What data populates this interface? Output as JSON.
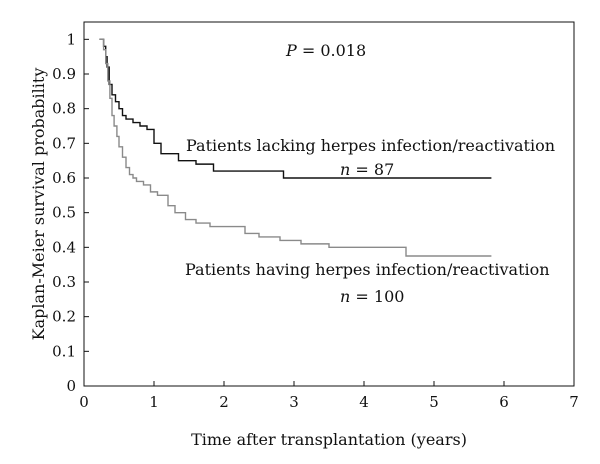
{
  "chart_data": {
    "type": "line",
    "title": "",
    "xlabel": "Time after transplantation (years)",
    "ylabel": "Kaplan-Meier survival probability",
    "xlim": [
      0,
      7
    ],
    "ylim": [
      0,
      1.05
    ],
    "xticks": [
      "0",
      "1",
      "2",
      "3",
      "4",
      "5",
      "6",
      "7"
    ],
    "yticks": [
      "0",
      "0.1",
      "0.2",
      "0.3",
      "0.4",
      "0.5",
      "0.6",
      "0.7",
      "0.8",
      "0.9",
      "1"
    ],
    "grid": false,
    "step": true,
    "series": [
      {
        "name": "Patients lacking herpes infection/reactivation",
        "color": "#111111",
        "x": [
          0.22,
          0.28,
          0.31,
          0.33,
          0.36,
          0.4,
          0.45,
          0.5,
          0.55,
          0.6,
          0.7,
          0.8,
          0.9,
          1.0,
          1.1,
          1.35,
          1.6,
          1.85,
          2.1,
          2.5,
          2.85,
          3.3,
          3.8,
          4.3,
          4.8,
          5.3,
          5.82
        ],
        "y": [
          1.0,
          0.98,
          0.95,
          0.92,
          0.87,
          0.84,
          0.82,
          0.8,
          0.78,
          0.77,
          0.76,
          0.75,
          0.74,
          0.7,
          0.67,
          0.65,
          0.64,
          0.62,
          0.62,
          0.62,
          0.6,
          0.6,
          0.6,
          0.6,
          0.6,
          0.6,
          0.6
        ]
      },
      {
        "name": "Patients having herpes infection/reactivation",
        "color": "#8a8a8a",
        "x": [
          0.22,
          0.28,
          0.31,
          0.34,
          0.37,
          0.4,
          0.43,
          0.47,
          0.5,
          0.55,
          0.6,
          0.65,
          0.7,
          0.75,
          0.85,
          0.95,
          1.05,
          1.2,
          1.3,
          1.45,
          1.6,
          1.8,
          2.0,
          2.3,
          2.5,
          2.8,
          3.1,
          3.5,
          4.0,
          4.6,
          5.0,
          5.82
        ],
        "y": [
          1.0,
          0.97,
          0.93,
          0.88,
          0.83,
          0.78,
          0.75,
          0.72,
          0.69,
          0.66,
          0.63,
          0.61,
          0.6,
          0.59,
          0.58,
          0.56,
          0.55,
          0.52,
          0.5,
          0.48,
          0.47,
          0.46,
          0.46,
          0.44,
          0.43,
          0.42,
          0.41,
          0.4,
          0.4,
          0.375,
          0.375,
          0.375
        ]
      }
    ],
    "annotations": {
      "p_label": "P",
      "p_value": " = 0.018",
      "lacking_label": "Patients lacking herpes infection/reactivation",
      "lacking_n_label": "n",
      "lacking_n_value": " = 87",
      "having_label": "Patients having herpes infection/reactivation",
      "having_n_label": "n",
      "having_n_value": " = 100"
    }
  }
}
